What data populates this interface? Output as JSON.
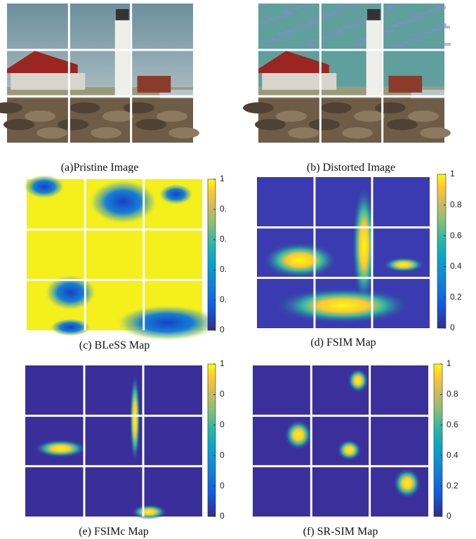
{
  "panels": [
    {
      "caption": "(a)Pristine Image"
    },
    {
      "caption": "(b) Distorted Image"
    },
    {
      "caption": "(c) BLeSS Map",
      "colorbar": [
        "0",
        "0.",
        "0.",
        "0.",
        "0.",
        "1"
      ]
    },
    {
      "caption": "(d) FSIM Map",
      "colorbar": [
        "0",
        "0.2",
        "0.4",
        "0.6",
        "0.8",
        "1"
      ]
    },
    {
      "caption": "(e) FSIMc Map",
      "colorbar": [
        "0",
        "0",
        "0",
        "0",
        "0",
        "1"
      ]
    },
    {
      "caption": "(f) SR-SIM Map",
      "colorbar": [
        "0",
        "0.2",
        "0.4",
        "0.6",
        "0.8",
        "1"
      ]
    }
  ]
}
